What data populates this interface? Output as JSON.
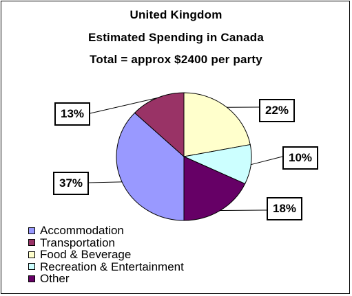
{
  "chart_data": {
    "type": "pie",
    "title": [
      "United Kingdom",
      "Estimated Spending in Canada",
      "Total = approx $2400 per party"
    ],
    "slices": [
      {
        "name": "Accommodation",
        "value": 37,
        "label": "37%",
        "color": "#9999ff"
      },
      {
        "name": "Transportation",
        "value": 13,
        "label": "13%",
        "color": "#993366"
      },
      {
        "name": "Food & Beverage",
        "value": 22,
        "label": "22%",
        "color": "#ffffcc"
      },
      {
        "name": "Recreation & Entertainment",
        "value": 10,
        "label": "10%",
        "color": "#ccffff"
      },
      {
        "name": "Other",
        "value": 18,
        "label": "18%",
        "color": "#660066"
      }
    ],
    "legend_position": "bottom-left"
  }
}
